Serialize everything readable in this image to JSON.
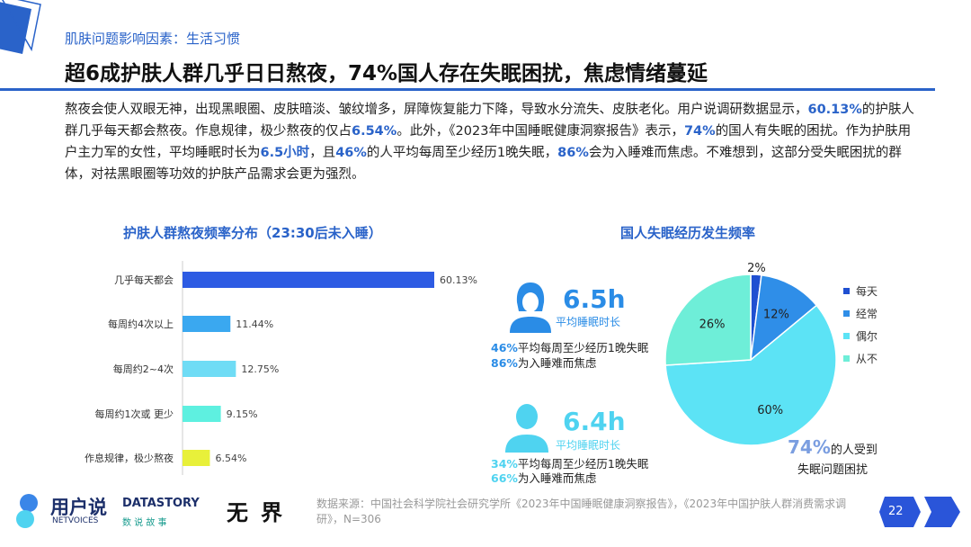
{
  "header": {
    "subtitle": "肌肤问题影响因素：生活习惯",
    "title": "超6成护肤人群几乎日日熬夜，74%国人存在失眠困扰，焦虑情绪蔓延"
  },
  "body": {
    "p1": "熬夜会使人双眼无神，出现黑眼圈、皮肤暗淡、皱纹增多，屏障恢复能力下降，导致水分流失、皮肤老化。用户说调研数据显示，",
    "h1": "60.13%",
    "p2": "的护肤人群几乎每天都会熬夜。作息规律，极少熬夜的仅占",
    "h2": "6.54%",
    "p3": "。此外，《2023年中国睡眠健康洞察报告》表示，",
    "h3": "74%",
    "p4": "的国人有失眠的困扰。作为护肤用户主力军的女性，平均睡眠时长为",
    "h4": "6.5小时",
    "p5": "，且",
    "h5": "46%",
    "p6": "的人平均每周至少经历1晚失眠，",
    "h6": "86%",
    "p7": "会为入睡难而焦虑。不难想到，这部分受失眠困扰的群体，对祛黑眼圈等功效的护肤产品需求会更为强烈。"
  },
  "chart_data": [
    {
      "type": "bar",
      "orientation": "horizontal",
      "title": "护肤人群熬夜频率分布（23:30后未入睡）",
      "categories": [
        "几乎每天都会",
        "每周约4次以上",
        "每周约2~4次",
        "每周约1次或 更少",
        "作息规律，极少熬夜"
      ],
      "values": [
        60.13,
        11.44,
        12.75,
        9.15,
        6.54
      ],
      "labels": [
        "60.13%",
        "11.44%",
        "12.75%",
        "9.15%",
        "6.54%"
      ],
      "colors": [
        "#2d5be3",
        "#3aa8f0",
        "#6fdcf5",
        "#5ef0e0",
        "#e8f03a"
      ]
    },
    {
      "type": "pie",
      "title": "国人失眠经历发生频率",
      "categories": [
        "每天",
        "经常",
        "偶尔",
        "从不"
      ],
      "values": [
        2,
        12,
        60,
        26
      ],
      "labels": [
        "2%",
        "12%",
        "60%",
        "26%"
      ],
      "colors": [
        "#1f4fd1",
        "#2f8ee8",
        "#5ce3f5",
        "#6eeed8"
      ],
      "legend": "right"
    }
  ],
  "stats": {
    "female": {
      "hours": "6.5h",
      "label": "平均睡眠时长",
      "l1p": "46%",
      "l1": "平均每周至少经历1晚失眠",
      "l2p": "86%",
      "l2": "为入睡难而焦虑",
      "color": "#2a8ce6"
    },
    "male": {
      "hours": "6.4h",
      "label": "平均睡眠时长",
      "l1p": "34%",
      "l1": "平均每周至少经历1晚失眠",
      "l2p": "66%",
      "l2": "为入睡难而焦虑",
      "color": "#4fd3f0"
    },
    "total_pct": "74%",
    "total_l1": "的人受到",
    "total_l2": "失眠问题困扰"
  },
  "footer": {
    "logo1": "用户说",
    "logo1_en": "NETVOICES",
    "logo2": "DATASTORY",
    "logo2_cn": "数 说 故 事",
    "logo3": "无界",
    "source": "数据来源：中国社会科学院社会研究学所《2023年中国睡眠健康洞察报告》，《2023年中国护肤人群消费需求调研》，N=306",
    "page": "22"
  }
}
